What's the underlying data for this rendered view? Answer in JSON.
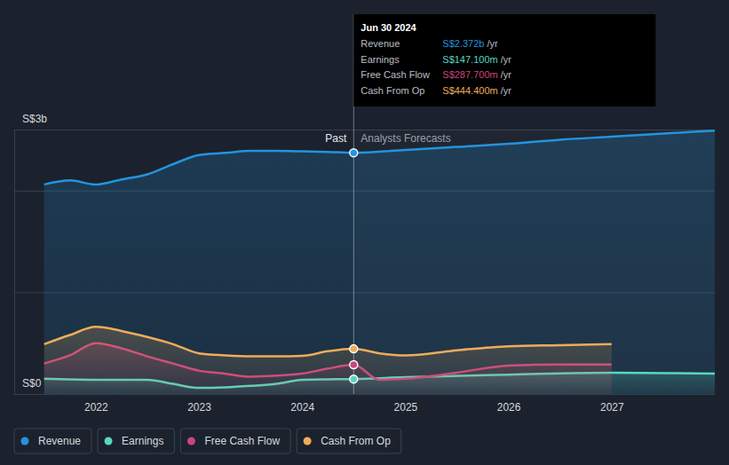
{
  "chart_data": {
    "type": "line",
    "xlim": [
      2021.21,
      2028.0
    ],
    "xticks": [
      2022,
      2023,
      2024,
      2025,
      2026,
      2027
    ],
    "ylim": [
      0,
      2.6
    ],
    "yticks": [
      {
        "value": 0,
        "label": "S$0"
      },
      {
        "value": 1,
        "label": null
      },
      {
        "value": 2,
        "label": null
      },
      {
        "value": 2.6,
        "label": "S$3b"
      }
    ],
    "grid": true,
    "legend": "bottom left",
    "forecast_start": 2024.5,
    "annotations": [
      {
        "text": "Past",
        "x": 2024.5
      },
      {
        "text": "Analysts Forecasts",
        "x": 2024.5
      }
    ],
    "tooltip": {
      "title": "Jun 30 2024",
      "rows": [
        {
          "label": "Revenue",
          "value": "S$2.372b",
          "unit": "/yr"
        },
        {
          "label": "Earnings",
          "value": "S$147.100m",
          "unit": "/yr"
        },
        {
          "label": "Free Cash Flow",
          "value": "S$287.700m",
          "unit": "/yr"
        },
        {
          "label": "Cash From Op",
          "value": "S$444.400m",
          "unit": "/yr"
        }
      ]
    },
    "series": [
      {
        "name": "Revenue",
        "color": "#2394df",
        "x": [
          2021.5,
          2021.75,
          2022.0,
          2022.25,
          2022.5,
          2022.75,
          2023.0,
          2023.25,
          2023.5,
          2023.75,
          2024.0,
          2024.25,
          2024.5,
          2025.0,
          2025.5,
          2026.0,
          2026.5,
          2027.0,
          2027.5,
          2028.0
        ],
        "values": [
          2.06,
          2.1,
          2.06,
          2.11,
          2.16,
          2.26,
          2.35,
          2.37,
          2.39,
          2.39,
          2.386,
          2.38,
          2.372,
          2.4,
          2.43,
          2.46,
          2.5,
          2.53,
          2.56,
          2.59
        ]
      },
      {
        "name": "Earnings",
        "color": "#58d7c0",
        "x": [
          2021.5,
          2022.0,
          2022.5,
          2022.75,
          2023.0,
          2023.25,
          2023.5,
          2023.75,
          2024.0,
          2024.25,
          2024.5,
          2025.0,
          2026.0,
          2027.0,
          2028.0
        ],
        "values": [
          0.15,
          0.14,
          0.14,
          0.1,
          0.06,
          0.065,
          0.08,
          0.1,
          0.14,
          0.145,
          0.147,
          0.166,
          0.19,
          0.21,
          0.2
        ]
      },
      {
        "name": "Free Cash Flow",
        "color": "#c9457c",
        "x": [
          2021.5,
          2021.75,
          2022.0,
          2022.25,
          2022.5,
          2022.75,
          2023.0,
          2023.25,
          2023.5,
          2023.75,
          2024.0,
          2024.25,
          2024.5,
          2024.75,
          2025.0,
          2025.5,
          2026.0,
          2026.5,
          2027.0
        ],
        "values": [
          0.3,
          0.38,
          0.5,
          0.45,
          0.37,
          0.3,
          0.23,
          0.2,
          0.17,
          0.18,
          0.2,
          0.25,
          0.2877,
          0.14,
          0.15,
          0.21,
          0.28,
          0.29,
          0.29
        ]
      },
      {
        "name": "Cash From Op",
        "color": "#f0ac5a",
        "x": [
          2021.5,
          2021.75,
          2022.0,
          2022.25,
          2022.5,
          2022.75,
          2023.0,
          2023.25,
          2023.5,
          2023.75,
          2024.0,
          2024.25,
          2024.5,
          2024.75,
          2025.0,
          2025.5,
          2026.0,
          2026.5,
          2027.0
        ],
        "values": [
          0.49,
          0.58,
          0.66,
          0.62,
          0.56,
          0.49,
          0.4,
          0.38,
          0.37,
          0.37,
          0.375,
          0.42,
          0.444,
          0.4,
          0.38,
          0.43,
          0.47,
          0.48,
          0.49
        ]
      }
    ]
  }
}
